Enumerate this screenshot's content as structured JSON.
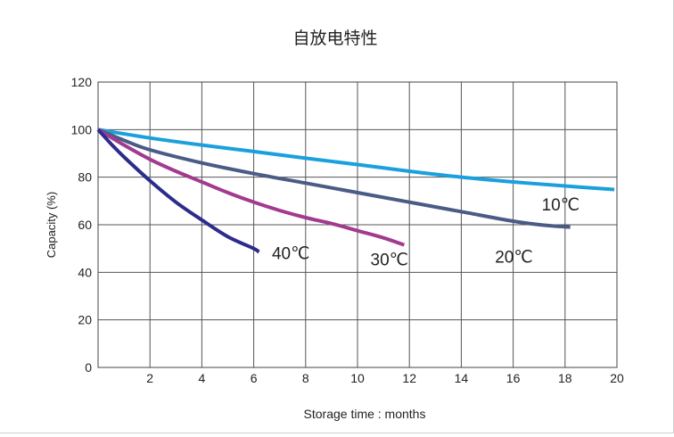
{
  "chart_data": {
    "type": "line",
    "title": "自放电特性",
    "xlabel": "Storage time : months",
    "ylabel": "Capacity (%)",
    "xlim": [
      0,
      20
    ],
    "ylim": [
      0,
      120
    ],
    "x_ticks": [
      "2",
      "4",
      "6",
      "8",
      "10",
      "12",
      "14",
      "16",
      "18",
      "20"
    ],
    "y_ticks": [
      "0",
      "20",
      "40",
      "60",
      "80",
      "100",
      "120"
    ],
    "grid": true,
    "series": [
      {
        "name": "10℃",
        "color": "#1aa0dc",
        "x": [
          0,
          2,
          4,
          6,
          8,
          10,
          12,
          14,
          16,
          18,
          19.9
        ],
        "y": [
          100,
          96.5,
          93.5,
          90.8,
          88,
          85.3,
          82.5,
          80,
          78,
          76.3,
          74.8
        ]
      },
      {
        "name": "20℃",
        "color": "#4a5b85",
        "x": [
          0,
          1,
          2,
          4,
          6,
          8,
          10,
          12,
          14,
          16,
          17.2,
          18.2
        ],
        "y": [
          100,
          95.5,
          91.5,
          86,
          81.5,
          77.5,
          73.5,
          69.5,
          65.5,
          61.5,
          59.8,
          59
        ]
      },
      {
        "name": "30℃",
        "color": "#a23a8f",
        "x": [
          0,
          1,
          2,
          3,
          4,
          5,
          6,
          7,
          8,
          9,
          10,
          11,
          11.8
        ],
        "y": [
          100,
          93.5,
          87.5,
          82.5,
          78,
          73.5,
          69.5,
          66,
          63,
          60.5,
          57.5,
          54.5,
          51.5
        ]
      },
      {
        "name": "40℃",
        "color": "#2c2c8c",
        "x": [
          0,
          0.5,
          1,
          2,
          3,
          4,
          5,
          6,
          6.2
        ],
        "y": [
          100,
          94,
          88.5,
          78.5,
          69.5,
          62,
          55,
          50,
          48.5
        ]
      }
    ],
    "annotations": [
      {
        "text": "10℃",
        "x": 17.1,
        "y": 66,
        "series": "10℃"
      },
      {
        "text": "20℃",
        "x": 15.3,
        "y": 44,
        "series": "20℃"
      },
      {
        "text": "30℃",
        "x": 10.5,
        "y": 43,
        "series": "30℃"
      },
      {
        "text": "40℃",
        "x": 6.7,
        "y": 45.5,
        "series": "40℃"
      }
    ]
  }
}
